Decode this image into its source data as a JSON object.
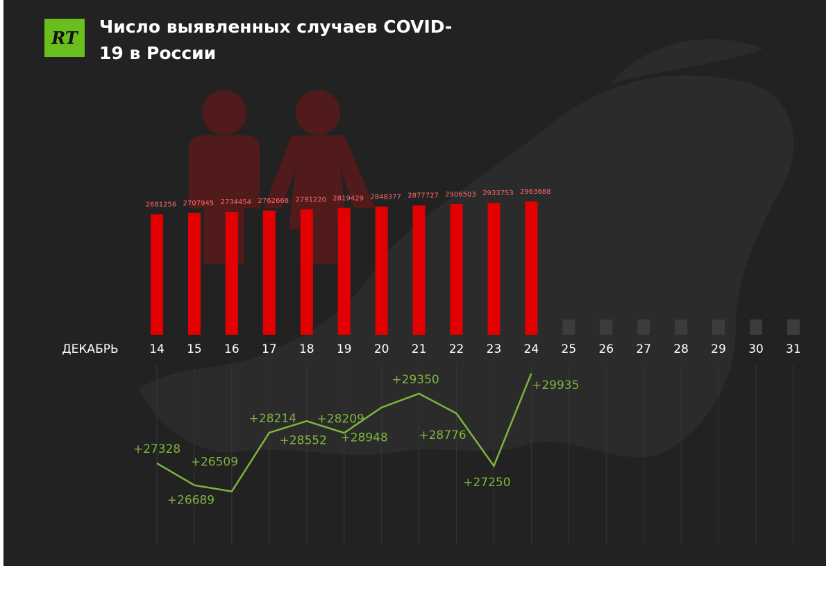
{
  "logo": "RT",
  "chart_data": {
    "type": "bar",
    "title": "Число выявленных случаев COVID-19 в России",
    "x_label": "ДЕКАБРЬ",
    "categories": [
      "14",
      "15",
      "16",
      "17",
      "18",
      "19",
      "20",
      "21",
      "22",
      "23",
      "24",
      "25",
      "26",
      "27",
      "28",
      "29",
      "30",
      "31"
    ],
    "ylim": [
      0,
      4000000
    ],
    "y2lim": [
      24000,
      31000
    ],
    "series": [
      {
        "type": "bar",
        "color": "#e30000",
        "values": [
          2681256,
          2707945,
          2734454,
          2762668,
          2791220,
          2819429,
          2848377,
          2877727,
          2906503,
          2933753,
          2963688,
          null,
          null,
          null,
          null,
          null,
          null,
          null
        ]
      },
      {
        "type": "line",
        "axis": "y2",
        "color": "#7db53c",
        "values": [
          27328,
          26689,
          26509,
          28214,
          28552,
          28209,
          28948,
          29350,
          28776,
          27250,
          29935,
          null,
          null,
          null,
          null,
          null,
          null,
          null
        ],
        "value_labels": [
          "+27328",
          "+26689",
          "+26509",
          "+28214",
          "+28552",
          "+28209",
          "+28948",
          "+29350",
          "+28776",
          "+27250",
          "+29935",
          null,
          null,
          null,
          null,
          null,
          null,
          null
        ]
      }
    ]
  }
}
